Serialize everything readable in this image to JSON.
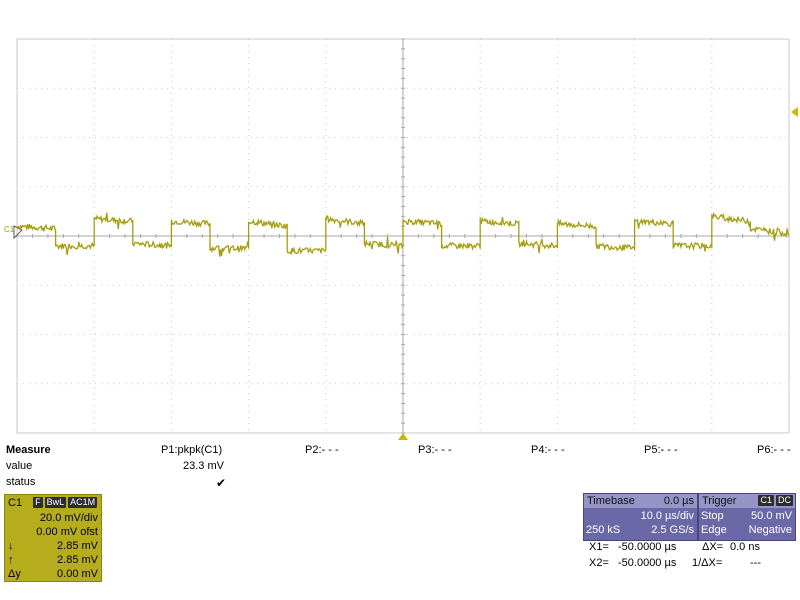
{
  "screen": {
    "channel_marker": "C1",
    "colors": {
      "trace": "#a69e0e",
      "grid": "#c8c8c8",
      "axis": "#a8a8a8",
      "trigger_marker": "#c8b800"
    }
  },
  "measure": {
    "title": "Measure",
    "row_value": "value",
    "row_status": "status",
    "params": [
      {
        "name": "P1:pkpk(C1)",
        "value": "23.3 mV",
        "status": "✔"
      },
      {
        "name": "P2:- - -",
        "value": "",
        "status": ""
      },
      {
        "name": "P3:- - -",
        "value": "",
        "status": ""
      },
      {
        "name": "P4:- - -",
        "value": "",
        "status": ""
      },
      {
        "name": "P5:- - -",
        "value": "",
        "status": ""
      },
      {
        "name": "P6:- - -",
        "value": "",
        "status": ""
      }
    ]
  },
  "channel1": {
    "label": "C1",
    "tags": [
      "F",
      "BwL",
      "AC1M"
    ],
    "vdiv": "20.0 mV/div",
    "offset": "0.00 mV ofst",
    "cursor_down_label": "↓",
    "cursor_down": "2.85 mV",
    "cursor_up_label": "↑",
    "cursor_up": "2.85 mV",
    "delta_label": "Δy",
    "delta": "0.00 mV"
  },
  "timebase": {
    "title": "Timebase",
    "delay": "0.0 µs",
    "tdiv": "10.0 µs/div",
    "samples": "250 kS",
    "rate": "2.5 GS/s"
  },
  "trigger": {
    "title": "Trigger",
    "tags": [
      "C1",
      "DC"
    ],
    "mode_label": "Stop",
    "level": "50.0 mV",
    "type_label": "Edge",
    "slope": "Negative"
  },
  "cursors": {
    "x1_label": "X1=",
    "x1": "-50.0000 µs",
    "dx_label": "ΔX=",
    "dx": "0.0 ns",
    "x2_label": "X2=",
    "x2": "-50.0000 µs",
    "inv_dx_label": "1/ΔX=",
    "inv_dx": "---"
  },
  "chart_data": {
    "type": "line",
    "series": [
      {
        "x_div": [
          0,
          0.5,
          0.5,
          1.0,
          1.0,
          1.5,
          1.5,
          2.0,
          2.0,
          2.5,
          2.5,
          3.0,
          3.0,
          3.5,
          3.5,
          4.0,
          4.0,
          4.5,
          4.5,
          5.0,
          5.0,
          5.5,
          5.5,
          6.0,
          6.0,
          6.5,
          6.5,
          7.0,
          7.0,
          7.5,
          7.5,
          8.0,
          8.0,
          8.5,
          8.5,
          9.0,
          9.0,
          9.5,
          9.5,
          10.0
        ],
        "y_div": [
          0.2,
          0.15,
          -0.2,
          -0.2,
          0.35,
          0.3,
          -0.15,
          -0.2,
          0.3,
          0.25,
          -0.25,
          -0.25,
          0.3,
          0.2,
          -0.3,
          -0.3,
          0.35,
          0.25,
          -0.15,
          -0.2,
          0.3,
          0.25,
          -0.2,
          -0.2,
          0.3,
          0.25,
          -0.15,
          -0.2,
          0.25,
          0.2,
          -0.2,
          -0.25,
          0.3,
          0.25,
          -0.2,
          -0.2,
          0.4,
          0.3,
          0.15,
          0.05
        ]
      }
    ],
    "x_divisions": 10,
    "y_divisions": 8,
    "ylim_div": [
      -4,
      4
    ],
    "grid": true
  }
}
